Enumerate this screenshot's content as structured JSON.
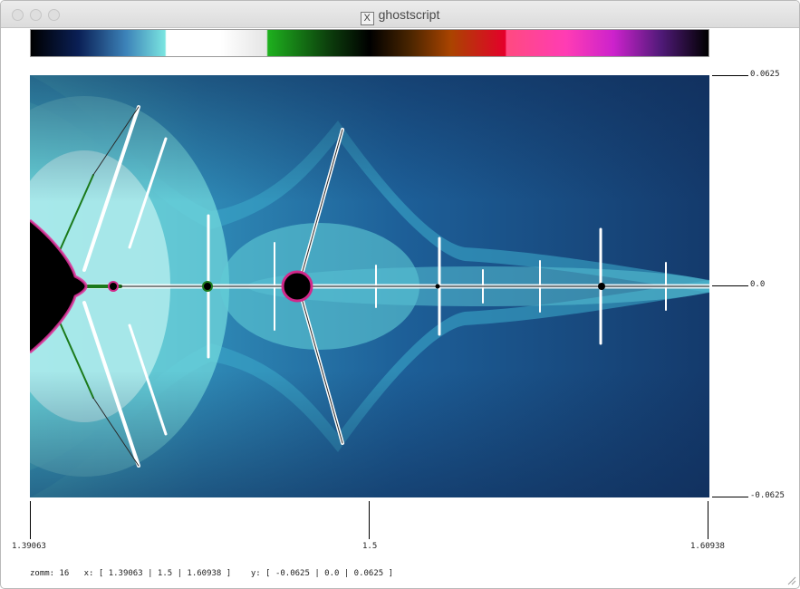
{
  "window": {
    "title": "ghostscript",
    "title_icon": "X"
  },
  "colors": {
    "set_interior": "#000000",
    "filament": "#ffffff",
    "background_dark": "#173a6c"
  },
  "axes": {
    "x_ticks": [
      "1.39063",
      "1.5",
      "1.60938"
    ],
    "y_ticks": [
      "0.0625",
      "0.0",
      "-0.0625"
    ]
  },
  "status": {
    "zoom": "zomm: 16",
    "x": "x: [ 1.39063 | 1.5 | 1.60938 ]",
    "y": "y: [ -0.0625 | 0.0 | 0.0625 ]"
  }
}
